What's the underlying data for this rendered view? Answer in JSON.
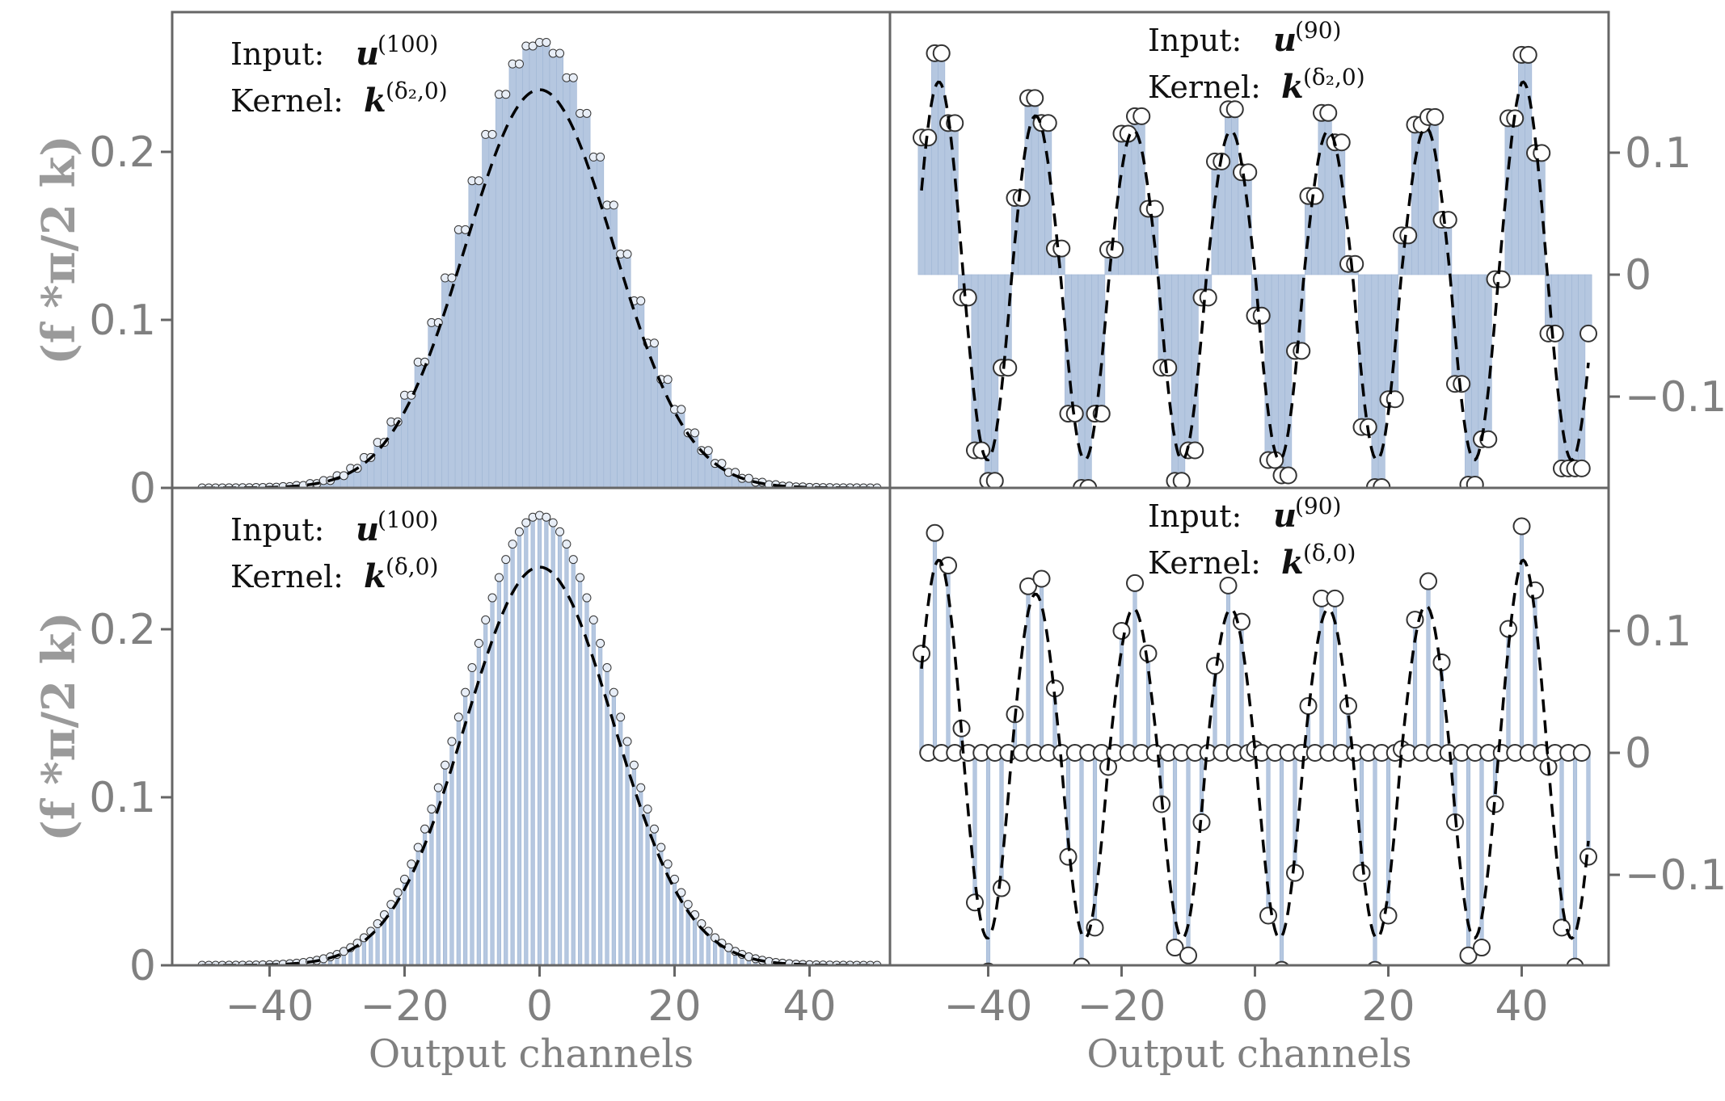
{
  "colors": {
    "bar": "#b5c7e0",
    "bar_edge": "#9fb5d4",
    "frame": "#666666",
    "tick_text": "#808080",
    "curve": "#000000"
  },
  "chart_data": [
    {
      "type": "bar",
      "panel": "top-left",
      "annotation": {
        "input_label": "Input:",
        "input_symbol": "u",
        "input_sup": "(100)",
        "kernel_label": "Kernel:",
        "kernel_symbol": "k",
        "kernel_sup": "(δ₂,0)"
      },
      "ylabel": "(f *π/2 k)",
      "xlabel": "",
      "xlim": [
        -50,
        50
      ],
      "ylim": [
        0,
        0.28
      ],
      "yticks": [
        0,
        0.1,
        0.2
      ],
      "yticklabels": [
        "0",
        "0.1",
        "0.2"
      ],
      "bar_width": 1,
      "dashed_curve": "gaussian",
      "curve_peak": 0.237,
      "curve_sigma": 11,
      "markers": "small-circles"
    },
    {
      "type": "bar",
      "panel": "top-right",
      "annotation": {
        "input_label": "Input:",
        "input_symbol": "u",
        "input_sup": "(90)",
        "kernel_label": "Kernel:",
        "kernel_symbol": "k",
        "kernel_sup": "(δ₂,0)"
      },
      "xlim": [
        -53,
        51
      ],
      "ylim": [
        -0.175,
        0.19
      ],
      "yticks": [
        -0.1,
        0,
        0.1
      ],
      "yticklabels": [
        "−0.1",
        "0",
        "0.1"
      ],
      "bar_width": 1,
      "dashed_curve": "oscillating",
      "curve_peak": 0.158,
      "markers": "open-circles"
    },
    {
      "type": "bar",
      "panel": "bottom-left",
      "annotation": {
        "input_label": "Input:",
        "input_symbol": "u",
        "input_sup": "(100)",
        "kernel_label": "Kernel:",
        "kernel_symbol": "k",
        "kernel_sup": "(δ,0)"
      },
      "ylabel": "(f *π/2 k)",
      "xlabel": "Output channels",
      "xlim": [
        -50,
        50
      ],
      "ylim": [
        0,
        0.28
      ],
      "xticks": [
        -40,
        -20,
        0,
        20,
        40
      ],
      "xticklabels": [
        "−40",
        "−20",
        "0",
        "20",
        "40"
      ],
      "yticks": [
        0,
        0.1,
        0.2
      ],
      "yticklabels": [
        "0",
        "0.1",
        "0.2"
      ],
      "bar_width": 0.55,
      "dashed_curve": "gaussian",
      "curve_peak": 0.237,
      "curve_sigma": 11,
      "markers": "small-circles"
    },
    {
      "type": "bar",
      "panel": "bottom-right",
      "annotation": {
        "input_label": "Input:",
        "input_symbol": "u",
        "input_sup": "(90)",
        "kernel_label": "Kernel:",
        "kernel_symbol": "k",
        "kernel_sup": "(δ,0)"
      },
      "xlabel": "Output channels",
      "xlim": [
        -53,
        51
      ],
      "ylim": [
        -0.175,
        0.19
      ],
      "xticks": [
        -40,
        -20,
        0,
        20,
        40
      ],
      "xticklabels": [
        "−40",
        "−20",
        "0",
        "20",
        "40"
      ],
      "yticks": [
        -0.1,
        0,
        0.1
      ],
      "yticklabels": [
        "−0.1",
        "0",
        "0.1"
      ],
      "bar_width": 0.55,
      "dashed_curve": "oscillating",
      "curve_peak": 0.158,
      "markers": "open-circles"
    }
  ]
}
